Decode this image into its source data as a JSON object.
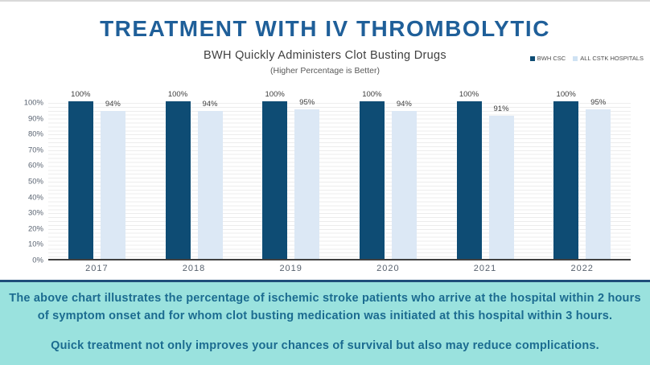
{
  "header": {
    "title": "TREATMENT WITH IV THROMBOLYTIC"
  },
  "legend": {
    "items": [
      {
        "label": "BWH CSC",
        "color": "#0e4c74"
      },
      {
        "label": "ALL CSTK HOSPITALS",
        "color": "#cfe2f3"
      }
    ]
  },
  "chart_data": {
    "type": "bar",
    "title": "BWH Quickly Administers Clot Busting Drugs",
    "subtitle": "(Higher Percentage is Better)",
    "categories": [
      "2017",
      "2018",
      "2019",
      "2020",
      "2021",
      "2022"
    ],
    "series": [
      {
        "name": "BWH CSC",
        "color": "#0e4c74",
        "values": [
          100,
          100,
          100,
          100,
          100,
          100
        ],
        "labels": [
          "100%",
          "100%",
          "100%",
          "100%",
          "100%",
          "100%"
        ]
      },
      {
        "name": "ALL CSTK HOSPITALS",
        "color": "#dce8f5",
        "values": [
          94,
          94,
          95,
          94,
          91,
          95
        ],
        "labels": [
          "94%",
          "94%",
          "95%",
          "94%",
          "91%",
          "95%"
        ]
      }
    ],
    "xlabel": "",
    "ylabel": "",
    "ylim": [
      0,
      100
    ],
    "grid": "horizontal-minor",
    "legend_position": "top-right",
    "yticks": [
      "100%",
      "90%",
      "80%",
      "70%",
      "60%",
      "50%",
      "40%",
      "30%",
      "20%",
      "10%",
      "0%"
    ]
  },
  "footer": {
    "paragraph1": "The above chart illustrates the percentage of ischemic stroke patients who arrive at the hospital within 2 hours of symptom onset and for whom clot busting medication was initiated at this hospital within 3 hours.",
    "paragraph2": "Quick treatment not only improves your chances of survival but also may reduce complications.",
    "background": "#9ae2de",
    "border_color": "#1f4e79",
    "text_color": "#1b6b90"
  },
  "colors": {
    "title": "#1f5f99",
    "bar_dark": "#0e4c74",
    "bar_light": "#dce8f5",
    "axis_line": "#404040",
    "gridline": "#ededed"
  }
}
